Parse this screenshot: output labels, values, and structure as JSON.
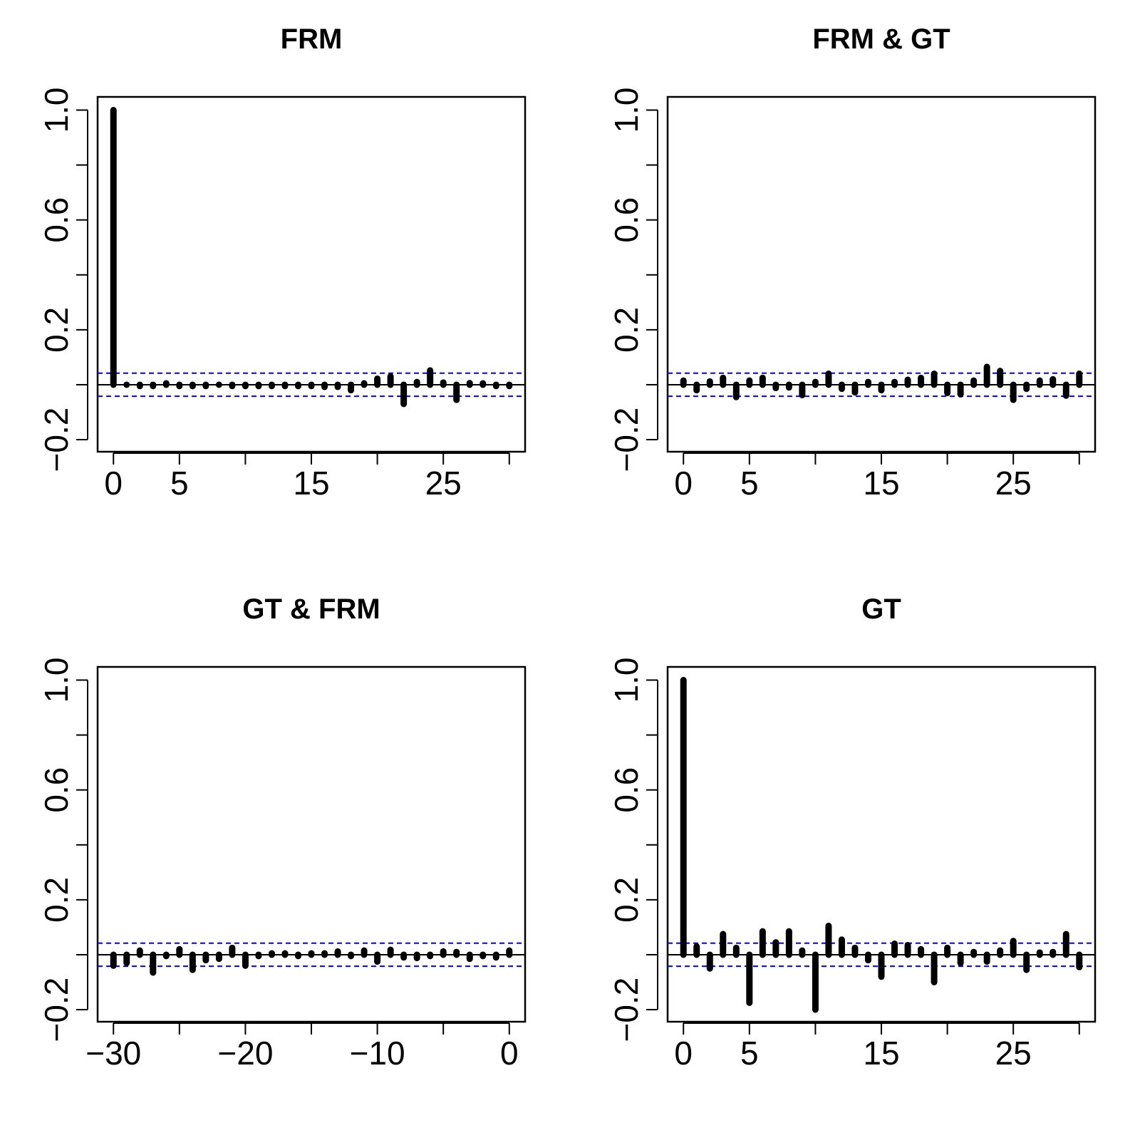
{
  "chart_data": [
    {
      "type": "bar",
      "title": "FRM",
      "xlim": [
        -1.2,
        31.2
      ],
      "ylim": [
        -0.244,
        1.048
      ],
      "x_ticks": [
        0,
        5,
        10,
        15,
        20,
        25,
        30
      ],
      "x_tick_labels": [
        "0",
        "5",
        "",
        "15",
        "",
        "25",
        ""
      ],
      "y_ticks": [
        -0.2,
        0,
        0.2,
        0.4,
        0.6,
        0.8,
        1.0
      ],
      "y_tick_labels": [
        "−0.2",
        "",
        "0.2",
        "",
        "0.6",
        "",
        "1.0"
      ],
      "conf_limit": 0.042,
      "conf_color": "#0000ff",
      "lags": [
        0,
        1,
        2,
        3,
        4,
        5,
        6,
        7,
        8,
        9,
        10,
        11,
        12,
        13,
        14,
        15,
        16,
        17,
        18,
        19,
        20,
        21,
        22,
        23,
        24,
        25,
        26,
        27,
        28,
        29,
        30
      ],
      "values": [
        1.0,
        0.0,
        -0.005,
        -0.005,
        0.005,
        -0.005,
        -0.005,
        -0.005,
        0.0,
        -0.005,
        -0.005,
        -0.005,
        -0.005,
        -0.005,
        -0.005,
        -0.005,
        -0.008,
        -0.008,
        -0.02,
        0.005,
        0.022,
        0.03,
        -0.07,
        0.01,
        0.052,
        0.008,
        -0.055,
        0.006,
        0.005,
        -0.005,
        -0.005
      ]
    },
    {
      "type": "bar",
      "title": "FRM & GT",
      "xlim": [
        -1.2,
        31.2
      ],
      "ylim": [
        -0.244,
        1.048
      ],
      "x_ticks": [
        0,
        5,
        10,
        15,
        20,
        25,
        30
      ],
      "x_tick_labels": [
        "0",
        "5",
        "",
        "15",
        "",
        "25",
        ""
      ],
      "y_ticks": [
        -0.2,
        0,
        0.2,
        0.4,
        0.6,
        0.8,
        1.0
      ],
      "y_tick_labels": [
        "−0.2",
        "",
        "0.2",
        "",
        "0.6",
        "",
        "1.0"
      ],
      "conf_limit": 0.042,
      "conf_color": "#0000ff",
      "lags": [
        0,
        1,
        2,
        3,
        4,
        5,
        6,
        7,
        8,
        9,
        10,
        11,
        12,
        13,
        14,
        15,
        16,
        17,
        18,
        19,
        20,
        21,
        22,
        23,
        24,
        25,
        26,
        27,
        28,
        29,
        30
      ],
      "values": [
        0.015,
        -0.02,
        0.012,
        0.025,
        -0.045,
        0.015,
        0.025,
        -0.012,
        -0.01,
        -0.038,
        0.01,
        0.04,
        -0.015,
        -0.028,
        0.01,
        -0.02,
        0.01,
        0.018,
        0.025,
        0.04,
        -0.03,
        -0.035,
        0.015,
        0.065,
        0.05,
        -0.055,
        -0.015,
        0.015,
        0.02,
        -0.04,
        0.04
      ]
    },
    {
      "type": "bar",
      "title": "GT & FRM",
      "xlim": [
        -31.2,
        1.2
      ],
      "ylim": [
        -0.244,
        1.048
      ],
      "x_ticks": [
        -30,
        -25,
        -20,
        -15,
        -10,
        -5,
        0
      ],
      "x_tick_labels": [
        "−30",
        "",
        "−20",
        "",
        "−10",
        "",
        "0"
      ],
      "y_ticks": [
        -0.2,
        0,
        0.2,
        0.4,
        0.6,
        0.8,
        1.0
      ],
      "y_tick_labels": [
        "−0.2",
        "",
        "0.2",
        "",
        "0.6",
        "",
        "1.0"
      ],
      "conf_limit": 0.042,
      "conf_color": "#0000ff",
      "lags": [
        -30,
        -29,
        -28,
        -27,
        -26,
        -25,
        -24,
        -23,
        -22,
        -21,
        -20,
        -19,
        -18,
        -17,
        -16,
        -15,
        -14,
        -13,
        -12,
        -11,
        -10,
        -9,
        -8,
        -7,
        -6,
        -5,
        -4,
        -3,
        -2,
        -1,
        0
      ],
      "values": [
        -0.04,
        -0.03,
        0.015,
        -0.065,
        -0.005,
        0.02,
        -0.055,
        -0.02,
        -0.015,
        0.025,
        -0.04,
        -0.005,
        0.005,
        0.005,
        -0.005,
        0.005,
        0.005,
        0.012,
        -0.005,
        0.015,
        -0.025,
        0.018,
        -0.01,
        -0.012,
        -0.005,
        0.012,
        0.01,
        -0.015,
        -0.005,
        -0.01,
        0.015
      ]
    },
    {
      "type": "bar",
      "title": "GT",
      "xlim": [
        -1.2,
        31.2
      ],
      "ylim": [
        -0.244,
        1.048
      ],
      "x_ticks": [
        0,
        5,
        10,
        15,
        20,
        25,
        30
      ],
      "x_tick_labels": [
        "0",
        "5",
        "",
        "15",
        "",
        "25",
        ""
      ],
      "y_ticks": [
        -0.2,
        0,
        0.2,
        0.4,
        0.6,
        0.8,
        1.0
      ],
      "y_tick_labels": [
        "−0.2",
        "",
        "0.2",
        "",
        "0.6",
        "",
        "1.0"
      ],
      "conf_limit": 0.042,
      "conf_color": "#0000ff",
      "lags": [
        0,
        1,
        2,
        3,
        4,
        5,
        6,
        7,
        8,
        9,
        10,
        11,
        12,
        13,
        14,
        15,
        16,
        17,
        18,
        19,
        20,
        21,
        22,
        23,
        24,
        25,
        26,
        27,
        28,
        29,
        30
      ],
      "values": [
        1.0,
        0.03,
        -0.05,
        0.075,
        0.025,
        -0.175,
        0.085,
        0.045,
        0.085,
        0.015,
        -0.2,
        0.105,
        0.055,
        0.025,
        -0.02,
        -0.08,
        0.04,
        0.035,
        0.02,
        -0.1,
        0.025,
        -0.03,
        0.01,
        -0.025,
        0.015,
        0.05,
        -0.055,
        0.008,
        0.01,
        0.075,
        -0.045
      ]
    }
  ]
}
